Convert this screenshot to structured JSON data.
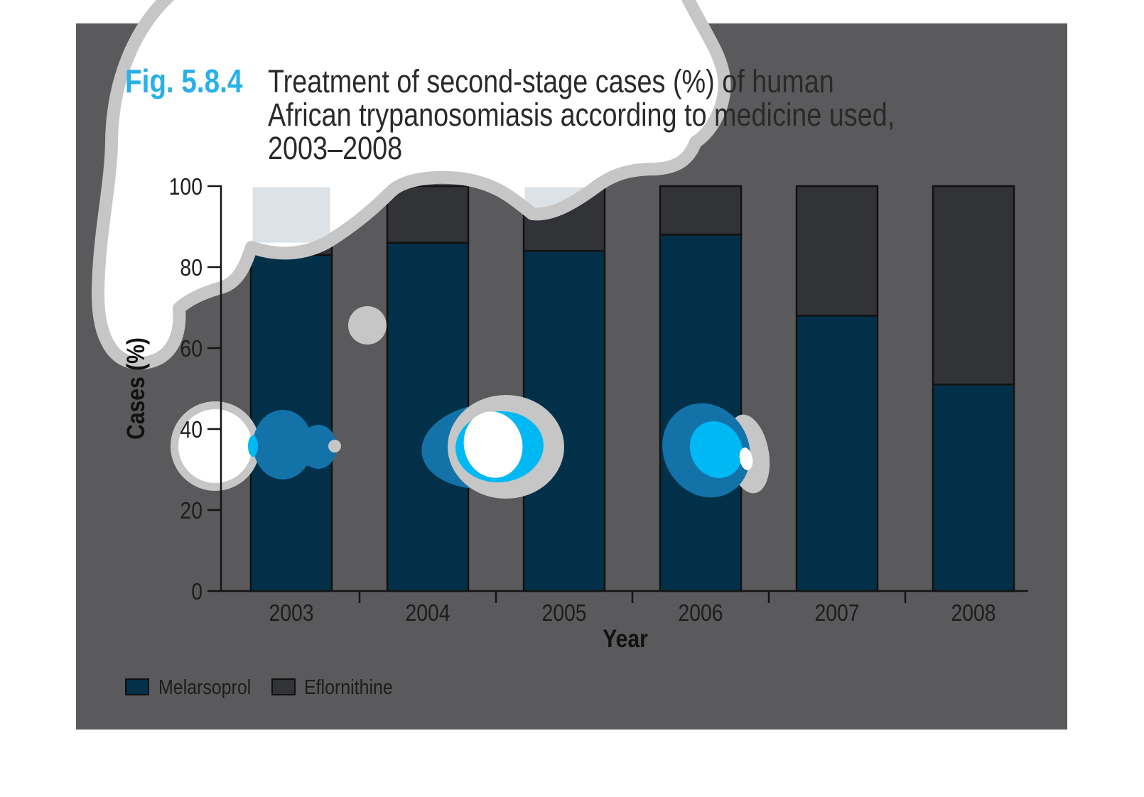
{
  "figure": {
    "label": "Fig. 5.8.4",
    "label_color": "#29b0e8",
    "title_lines": [
      "Treatment of second-stage cases (%) of human",
      "African trypanosomiasis according to medicine used,",
      "2003–2008"
    ]
  },
  "chart_data": {
    "type": "bar",
    "stacked": true,
    "categories": [
      "2003",
      "2004",
      "2005",
      "2006",
      "2007",
      "2008"
    ],
    "series": [
      {
        "name": "Melarsoprol",
        "color": "#033049",
        "values": [
          83,
          86,
          84,
          88,
          68,
          51
        ]
      },
      {
        "name": "Eflornithine",
        "color": "#323336",
        "values": [
          17,
          14,
          16,
          12,
          32,
          49
        ]
      }
    ],
    "xlabel": "Year",
    "ylabel": "Cases (%)",
    "ylim": [
      0,
      100
    ],
    "yticks": [
      0,
      20,
      40,
      60,
      80,
      100
    ],
    "grid": false,
    "legend_position": "bottom-left"
  },
  "legend": {
    "items": [
      {
        "label": "Melarsoprol",
        "color": "#033049"
      },
      {
        "label": "Eflornithine",
        "color": "#323336"
      }
    ]
  },
  "colors": {
    "panel_background": "#5a5a5c",
    "bar_outline": "#111111",
    "axis": "#141414",
    "cloud_fill": "#ffffff",
    "cloud_outline": "#c6c6c6",
    "overlay_blue": "#1373a9",
    "overlay_cyan": "#00b8f4",
    "overlay_silver": "#c6c6c6",
    "covered_segment_tint": "#dde2e7"
  }
}
